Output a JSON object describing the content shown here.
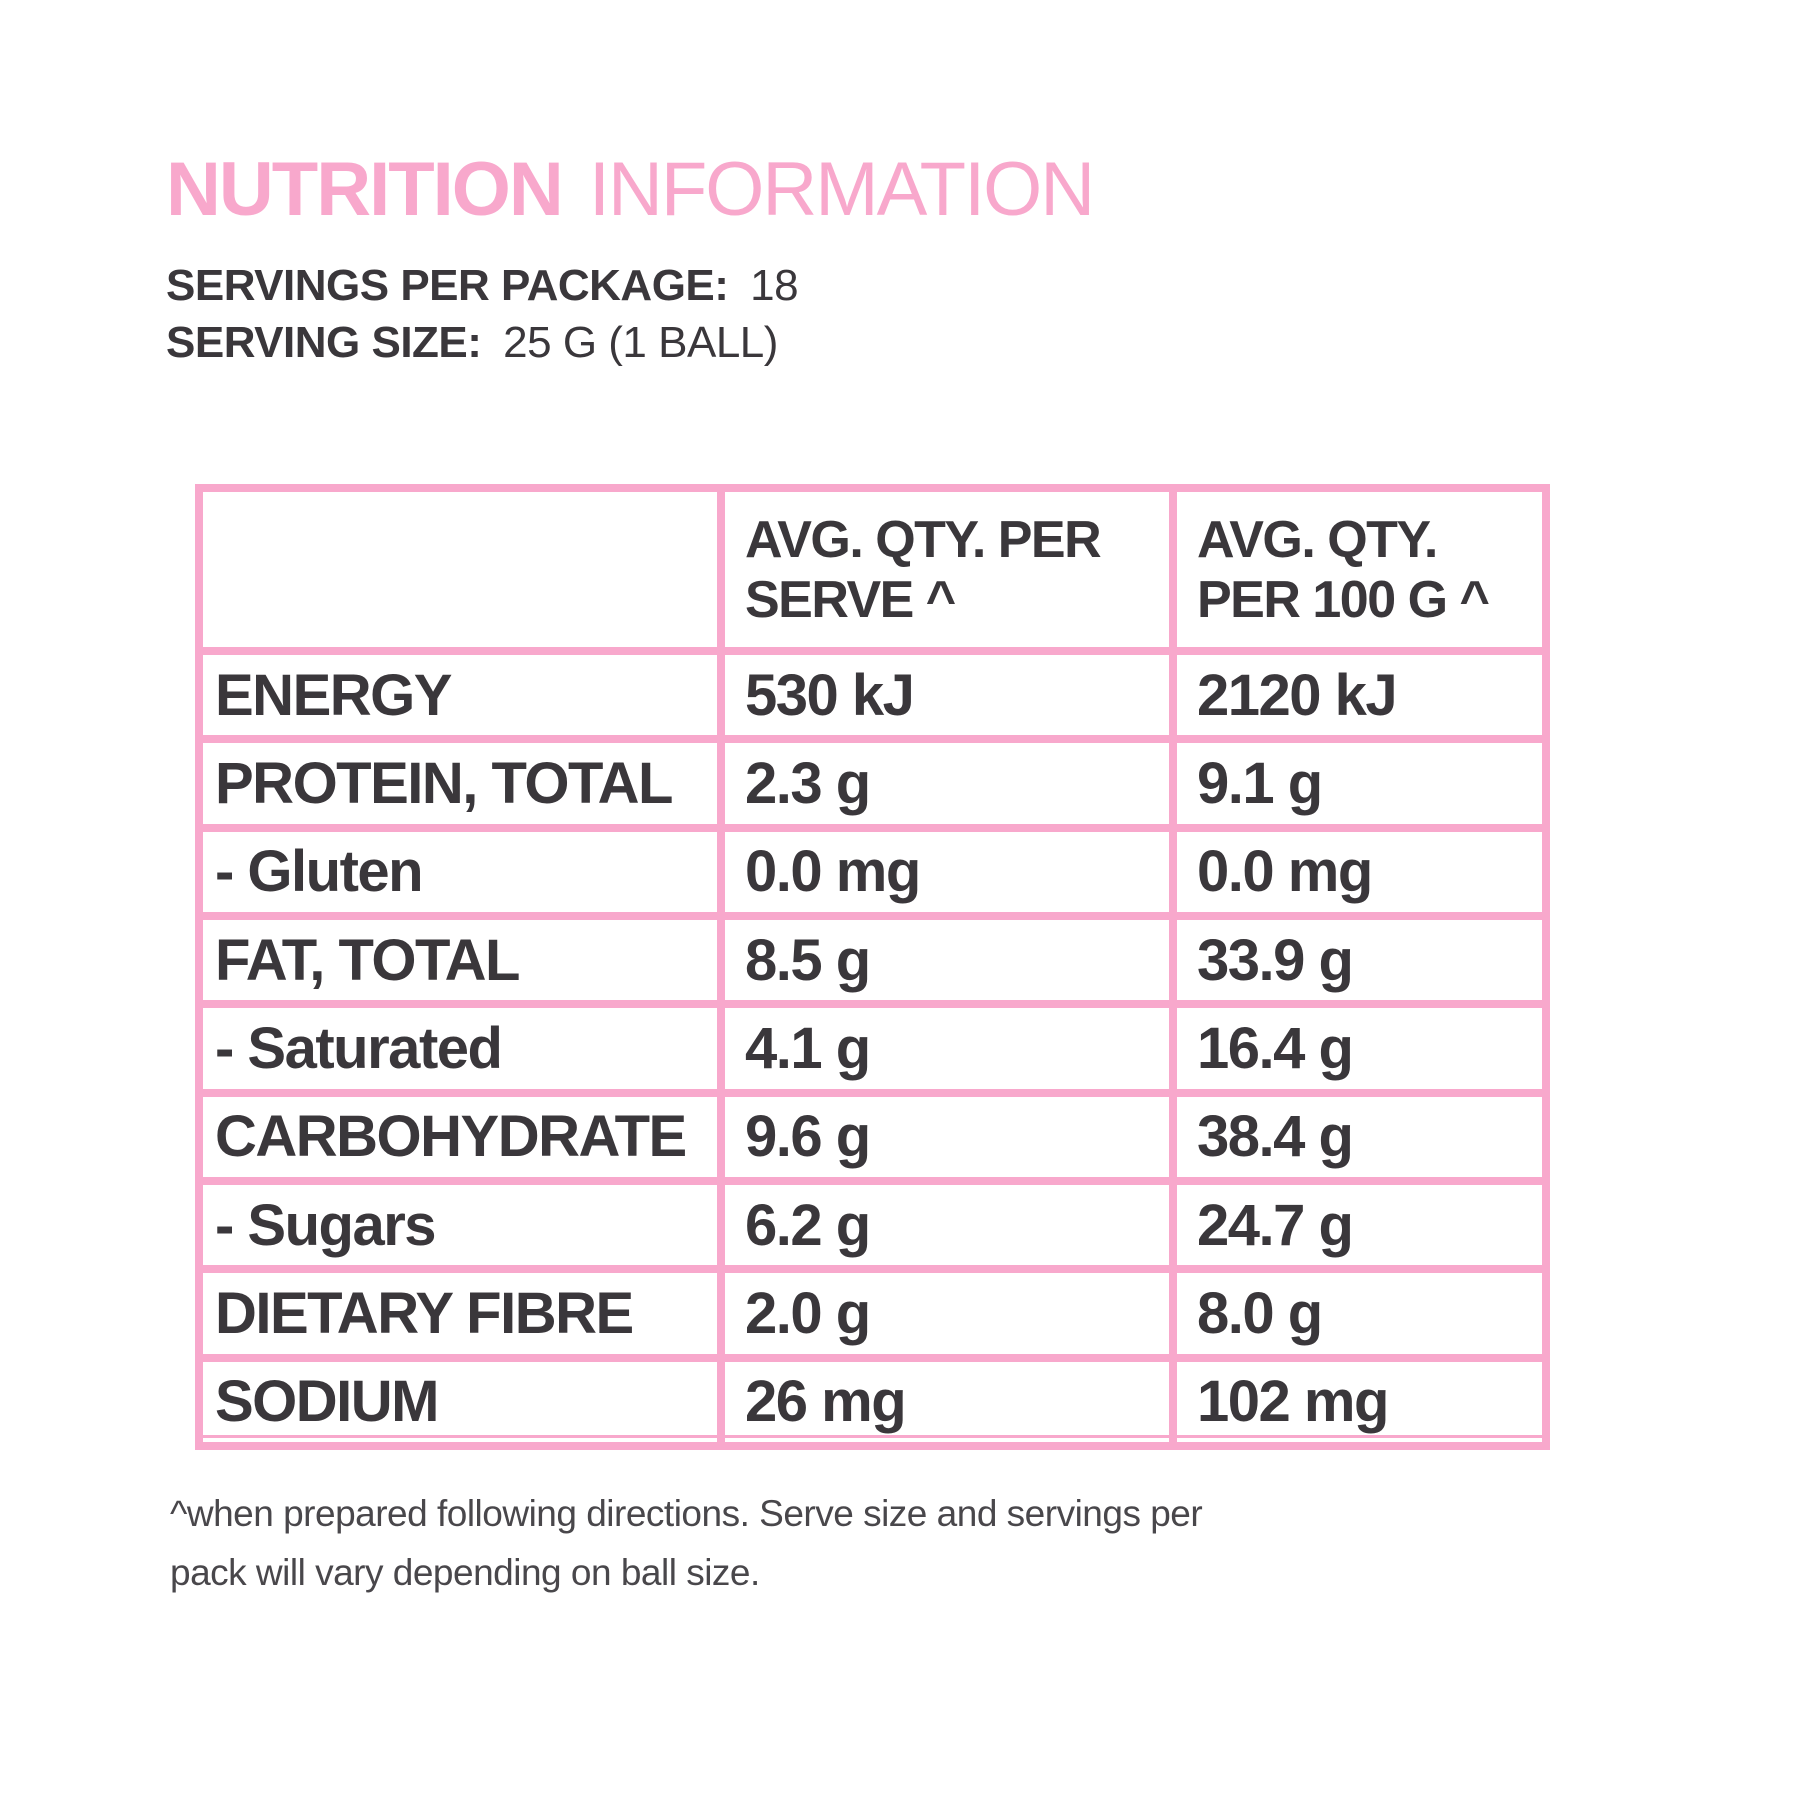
{
  "title": {
    "bold": "NUTRITION",
    "regular": "INFORMATION"
  },
  "meta": [
    {
      "label": "SERVINGS PER PACKAGE:",
      "value": "18"
    },
    {
      "label": "SERVING SIZE:",
      "value": "25 G (1 BALL)"
    }
  ],
  "table": {
    "headers": [
      {
        "line1": "",
        "line2": ""
      },
      {
        "line1": "AVG. QTY. PER",
        "line2": "SERVE ^"
      },
      {
        "line1": "AVG. QTY.",
        "line2": "PER 100 G ^"
      }
    ],
    "rows": [
      {
        "label": "ENERGY",
        "per_serve": "530 kJ",
        "per_100g": "2120 kJ"
      },
      {
        "label": "PROTEIN, TOTAL",
        "per_serve": "2.3 g",
        "per_100g": "9.1 g"
      },
      {
        "label": "- Gluten",
        "per_serve": "0.0 mg",
        "per_100g": "0.0 mg"
      },
      {
        "label": "FAT, TOTAL",
        "per_serve": "8.5 g",
        "per_100g": "33.9 g"
      },
      {
        "label": "- Saturated",
        "per_serve": "4.1 g",
        "per_100g": "16.4 g"
      },
      {
        "label": "CARBOHYDRATE",
        "per_serve": "9.6 g",
        "per_100g": "38.4 g"
      },
      {
        "label": "- Sugars",
        "per_serve": "6.2 g",
        "per_100g": "24.7 g"
      },
      {
        "label": "DIETARY FIBRE",
        "per_serve": "2.0 g",
        "per_100g": "8.0 g"
      },
      {
        "label": "SODIUM",
        "per_serve": "26 mg",
        "per_100g": "102 mg"
      }
    ]
  },
  "footnote": {
    "line1": "^when prepared following directions. Serve size and  servings per",
    "line2": "pack will vary depending on ball size."
  },
  "colors": {
    "pink": "#F8A8CC",
    "text_dark": "#3A373B",
    "footnote_gray": "#49474B"
  }
}
